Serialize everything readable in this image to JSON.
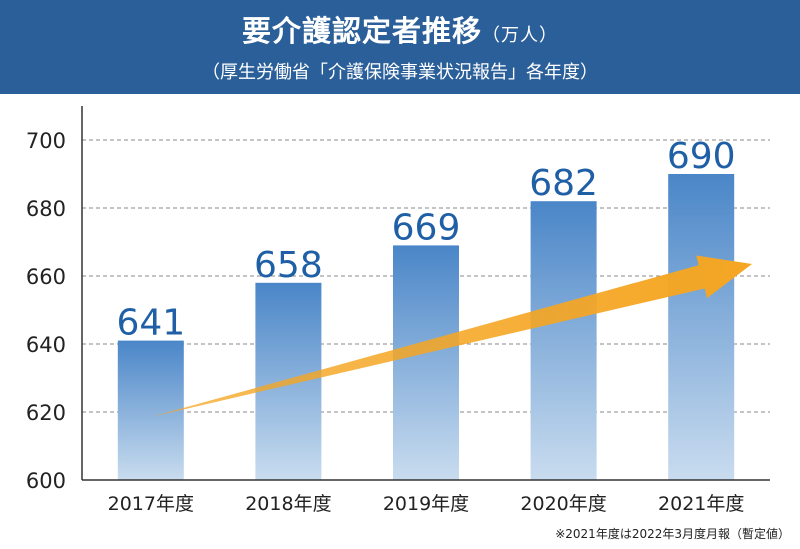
{
  "header": {
    "title": "要介護認定者推移",
    "title_unit": "（万人）",
    "subtitle": "（厚生労働省「介護保険事業状況報告」各年度）"
  },
  "note": "※2021年度は2022年3月度月報（暫定値）",
  "colors": {
    "header_bg": "#2a5f99",
    "bar_top": "#4a86c8",
    "bar_bottom": "#c9dcef",
    "value_label": "#1f5fa6",
    "arrow": "#f5a623"
  },
  "chart_data": {
    "type": "bar",
    "categories": [
      "2017年度",
      "2018年度",
      "2019年度",
      "2020年度",
      "2021年度"
    ],
    "values": [
      641,
      658,
      669,
      682,
      690
    ],
    "ylim": [
      600,
      710
    ],
    "yticks": [
      600,
      620,
      640,
      660,
      680,
      700
    ],
    "grid": "dashed horizontal",
    "annotation": "upward trend arrow"
  }
}
